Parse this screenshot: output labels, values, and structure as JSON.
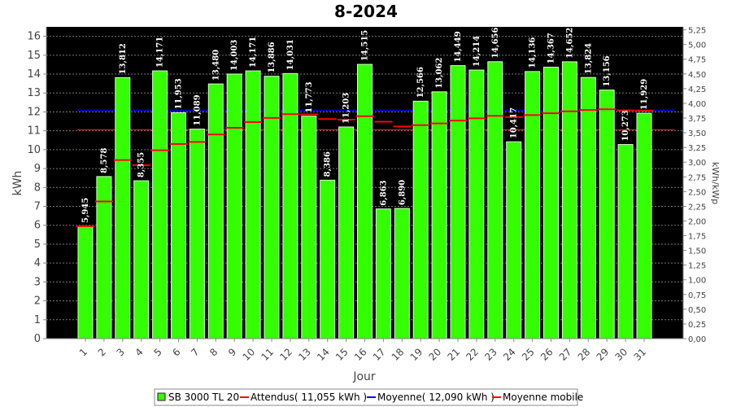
{
  "chart_data": {
    "type": "bar",
    "title": "8-2024",
    "xlabel": "Jour",
    "ylabel": "kWh",
    "y2label": "kWh/kWp",
    "ylim": [
      0,
      16.5
    ],
    "y2lim": [
      0,
      5.3
    ],
    "categories": [
      "1",
      "2",
      "3",
      "4",
      "5",
      "6",
      "7",
      "8",
      "9",
      "10",
      "11",
      "12",
      "13",
      "14",
      "15",
      "16",
      "17",
      "18",
      "19",
      "20",
      "21",
      "22",
      "23",
      "24",
      "25",
      "26",
      "27",
      "28",
      "29",
      "30",
      "31"
    ],
    "value_labels": [
      "5,945",
      "8,578",
      "13,812",
      "8,355",
      "14,171",
      "11,953",
      "11,089",
      "13,480",
      "14,003",
      "14,171",
      "13,886",
      "14,031",
      "11,773",
      "8,386",
      "11,203",
      "14,515",
      "6,863",
      "6,890",
      "12,566",
      "13,062",
      "14,449",
      "14,214",
      "14,656",
      "10,417",
      "14,136",
      "14,367",
      "14,652",
      "13,824",
      "13,156",
      "10,273",
      "11,929"
    ],
    "series": [
      {
        "name": "SB 3000 TL 20",
        "color": "#33ff00",
        "values": [
          5.945,
          8.578,
          13.812,
          8.355,
          14.171,
          11.953,
          11.089,
          13.48,
          14.003,
          14.171,
          13.886,
          14.031,
          11.773,
          8.386,
          11.203,
          14.515,
          6.863,
          6.89,
          12.566,
          13.062,
          14.449,
          14.214,
          14.656,
          10.417,
          14.136,
          14.367,
          14.652,
          13.824,
          13.156,
          10.273,
          11.929
        ]
      },
      {
        "name": "Moyenne mobile",
        "color": "#ff0000",
        "values": [
          5.95,
          7.26,
          9.45,
          9.18,
          9.97,
          10.3,
          10.41,
          10.8,
          11.16,
          11.46,
          11.68,
          11.88,
          11.87,
          11.62,
          11.59,
          11.77,
          11.48,
          11.23,
          11.3,
          11.39,
          11.54,
          11.66,
          11.79,
          11.73,
          11.83,
          11.93,
          12.03,
          12.1,
          12.14,
          12.08,
          12.07
        ]
      }
    ],
    "reference_lines": [
      {
        "name": "Attendus( 11,055 kWh )",
        "value": 11.055,
        "color": "#ff0000"
      },
      {
        "name": "Moyenne( 12,090 kWh )",
        "value": 12.09,
        "color": "#0000ff"
      }
    ],
    "yticks": [
      "0",
      "1",
      "2",
      "3",
      "4",
      "5",
      "6",
      "7",
      "8",
      "9",
      "10",
      "11",
      "12",
      "13",
      "14",
      "15",
      "16"
    ],
    "y2ticks": [
      "0,00",
      "0,25",
      "0,50",
      "0,75",
      "1,00",
      "1,25",
      "1,50",
      "1,75",
      "2,00",
      "2,25",
      "2,50",
      "2,75",
      "3,00",
      "3,25",
      "3,50",
      "3,75",
      "4,00",
      "4,25",
      "4,50",
      "4,75",
      "5,00",
      "5,25"
    ],
    "legend": {
      "position": "bottom",
      "items": [
        {
          "label": "SB 3000 TL 20",
          "color": "#33ff00",
          "kind": "box"
        },
        {
          "label": "Attendus( 11,055 kWh )",
          "color": "#ff0000",
          "kind": "line"
        },
        {
          "label": "Moyenne( 12,090 kWh )",
          "color": "#0000ff",
          "kind": "line"
        },
        {
          "label": "Moyenne mobile",
          "color": "#ff0000",
          "kind": "line"
        }
      ]
    },
    "background": "#000000",
    "grid": true
  }
}
